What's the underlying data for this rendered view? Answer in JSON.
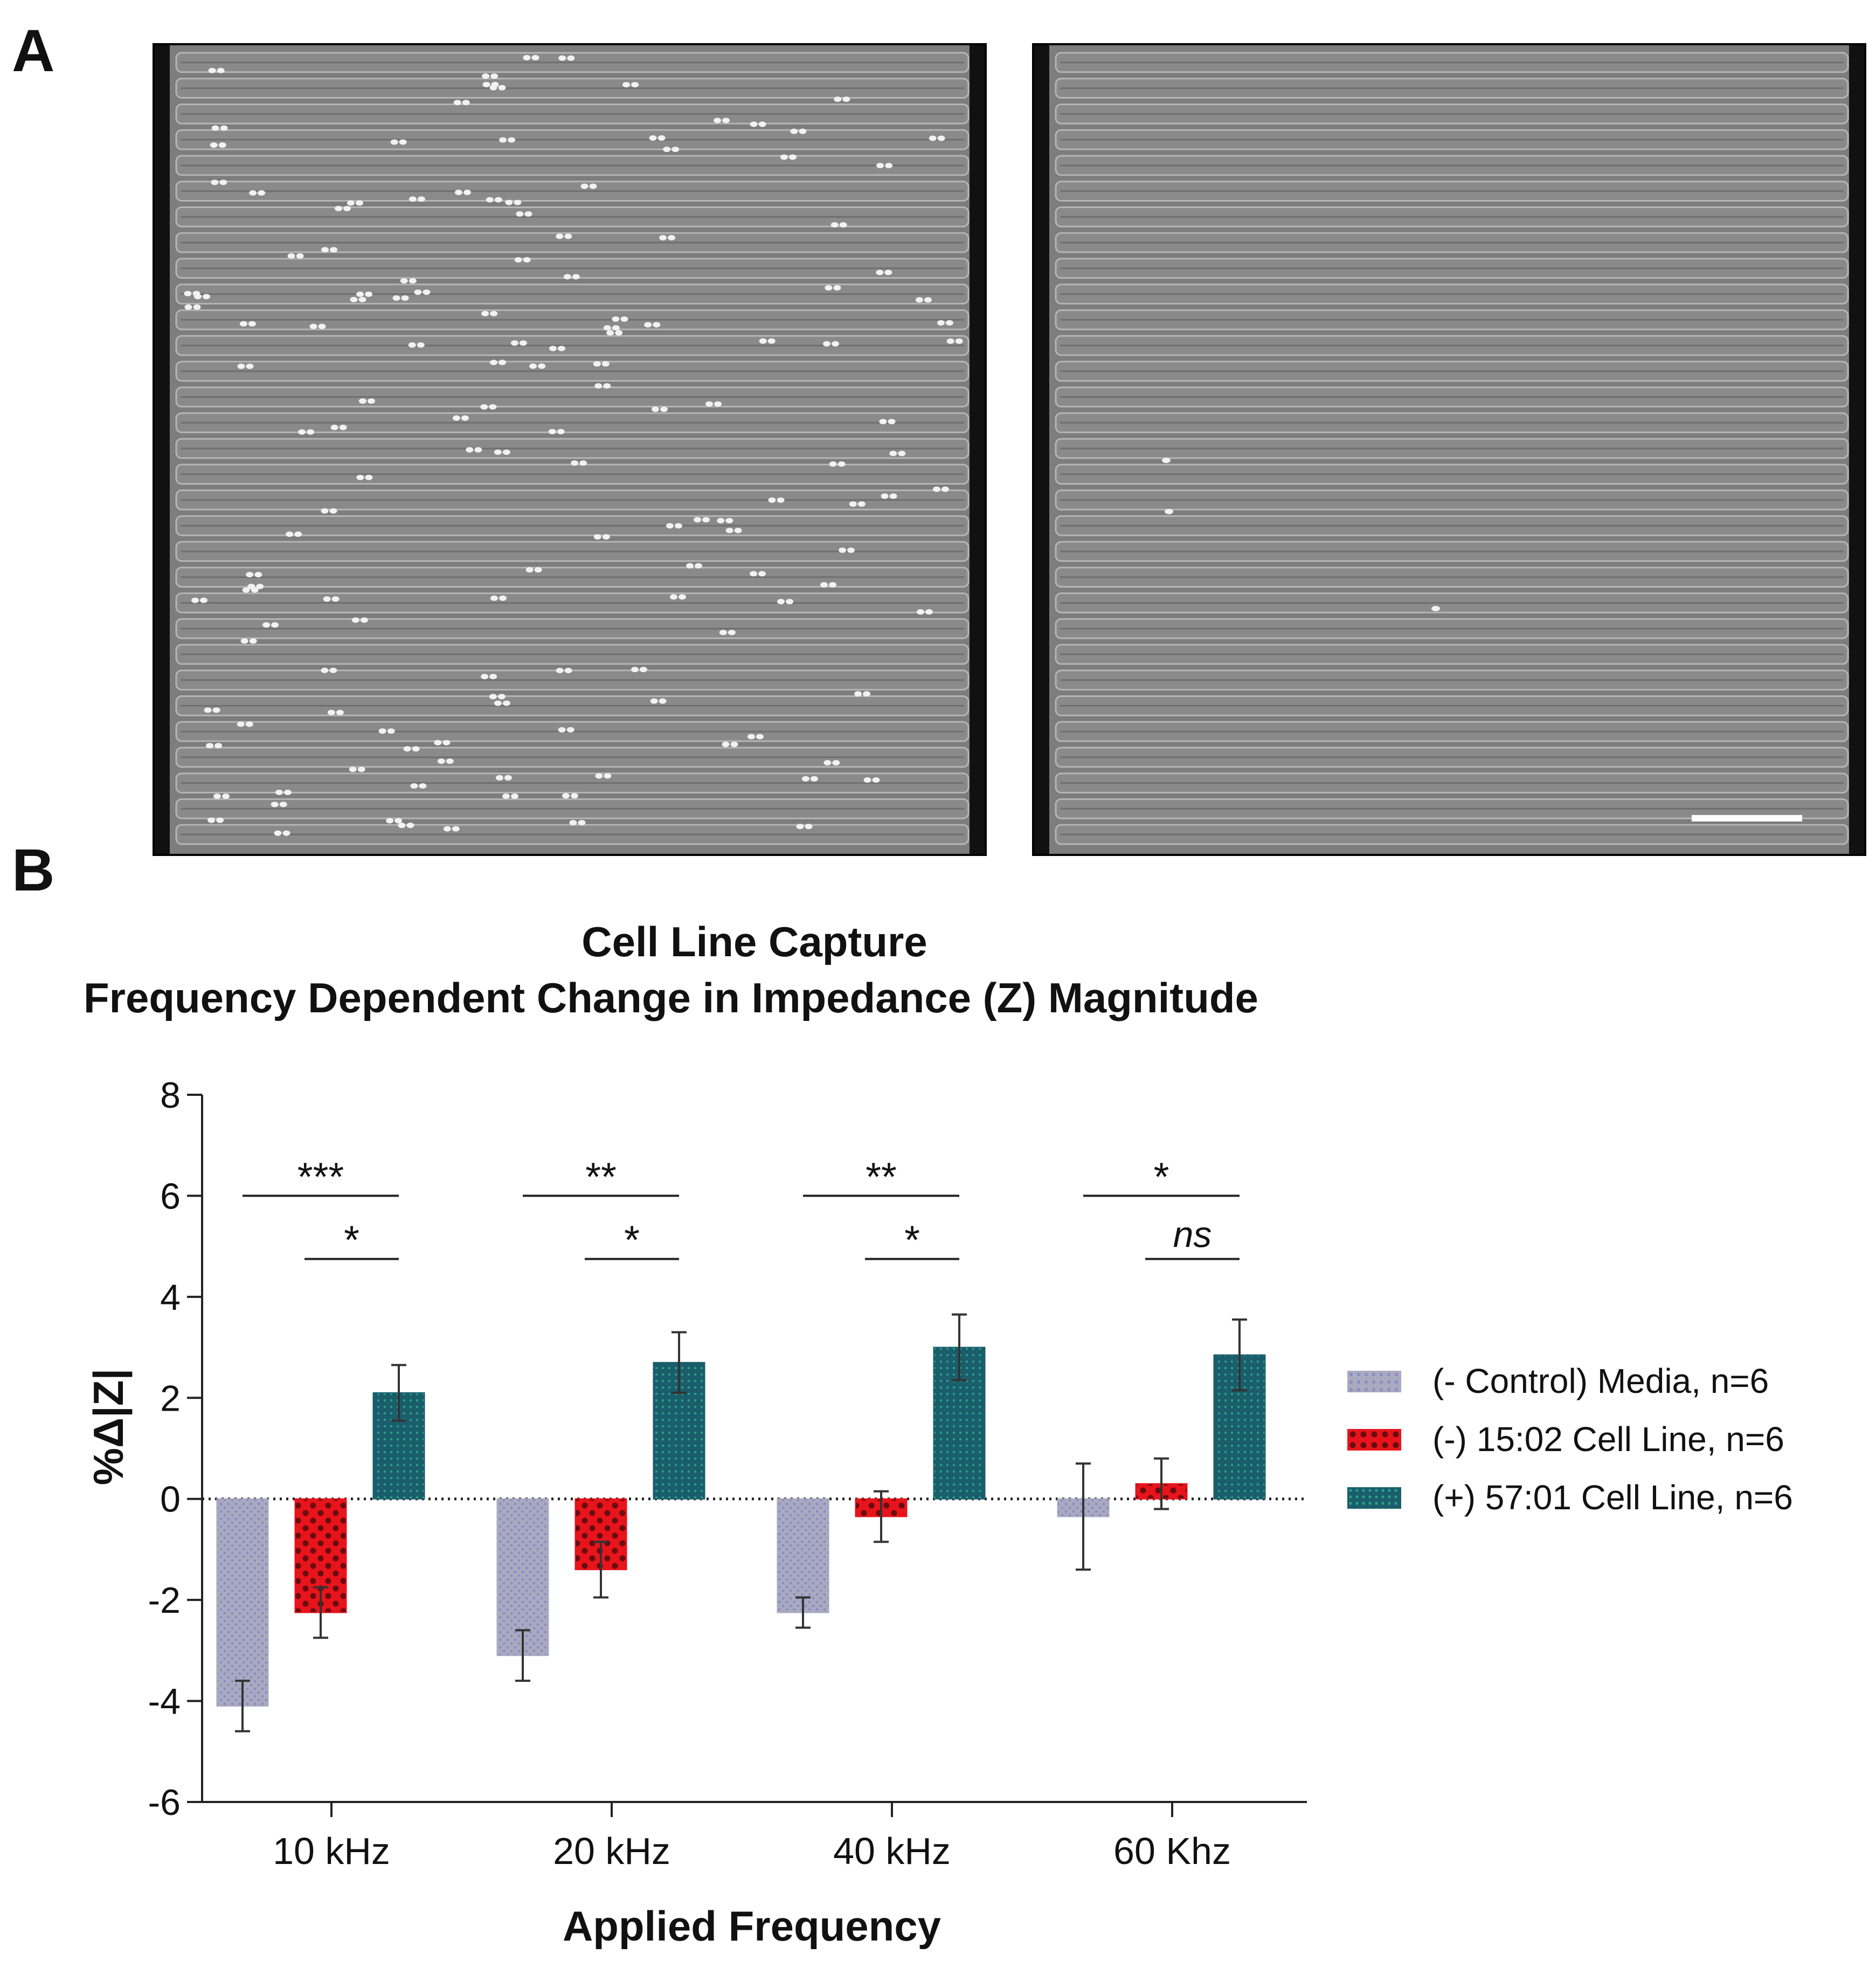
{
  "panels": {
    "a": "A",
    "b": "B"
  },
  "chart_data": {
    "type": "bar",
    "title": [
      "Cell Line Capture",
      "Frequency Dependent Change in Impedance (Z) Magnitude"
    ],
    "xlabel": "Applied Frequency",
    "ylabel": "%Δ|Z|",
    "ylim": [
      -6,
      8
    ],
    "yticks": [
      8,
      6,
      4,
      2,
      0,
      -2,
      -4,
      -6
    ],
    "categories": [
      "10 kHz",
      "20 kHz",
      "40 kHz",
      "60 Khz"
    ],
    "series": [
      {
        "name": "(- Control) Media, n=6",
        "color": "#a9aabf",
        "pattern": "dots",
        "values": [
          -4.1,
          -3.1,
          -2.25,
          -0.35
        ],
        "errors": [
          0.5,
          0.5,
          0.3,
          1.05
        ]
      },
      {
        "name": "(-) 15:02 Cell Line, n=6",
        "color": "#e8141c",
        "pattern": "checker",
        "values": [
          -2.25,
          -1.4,
          -0.35,
          0.3
        ],
        "errors": [
          0.5,
          0.55,
          0.5,
          0.5
        ]
      },
      {
        "name": "(+) 57:01 Cell Line, n=6",
        "color": "#1a5d6b",
        "pattern": "mesh",
        "values": [
          2.1,
          2.7,
          3.0,
          2.85
        ],
        "errors": [
          0.55,
          0.6,
          0.65,
          0.7
        ]
      }
    ],
    "significance": [
      {
        "category": "10 kHz",
        "pair": [
          "(- Control) Media, n=6",
          "(+) 57:01 Cell Line, n=6"
        ],
        "label": "***",
        "italic": false
      },
      {
        "category": "10 kHz",
        "pair": [
          "(-) 15:02 Cell Line, n=6",
          "(+) 57:01 Cell Line, n=6"
        ],
        "label": "*",
        "italic": false
      },
      {
        "category": "20 kHz",
        "pair": [
          "(- Control) Media, n=6",
          "(+) 57:01 Cell Line, n=6"
        ],
        "label": "**",
        "italic": false
      },
      {
        "category": "20 kHz",
        "pair": [
          "(-) 15:02 Cell Line, n=6",
          "(+) 57:01 Cell Line, n=6"
        ],
        "label": "*",
        "italic": false
      },
      {
        "category": "40 kHz",
        "pair": [
          "(- Control) Media, n=6",
          "(+) 57:01 Cell Line, n=6"
        ],
        "label": "**",
        "italic": false
      },
      {
        "category": "40 kHz",
        "pair": [
          "(-) 15:02 Cell Line, n=6",
          "(+) 57:01 Cell Line, n=6"
        ],
        "label": "*",
        "italic": false
      },
      {
        "category": "60 Khz",
        "pair": [
          "(- Control) Media, n=6",
          "(+) 57:01 Cell Line, n=6"
        ],
        "label": "*",
        "italic": false
      },
      {
        "category": "60 Khz",
        "pair": [
          "(-) 15:02 Cell Line, n=6",
          "(+) 57:01 Cell Line, n=6"
        ],
        "label": "ns",
        "italic": true
      }
    ],
    "legend": "right"
  }
}
